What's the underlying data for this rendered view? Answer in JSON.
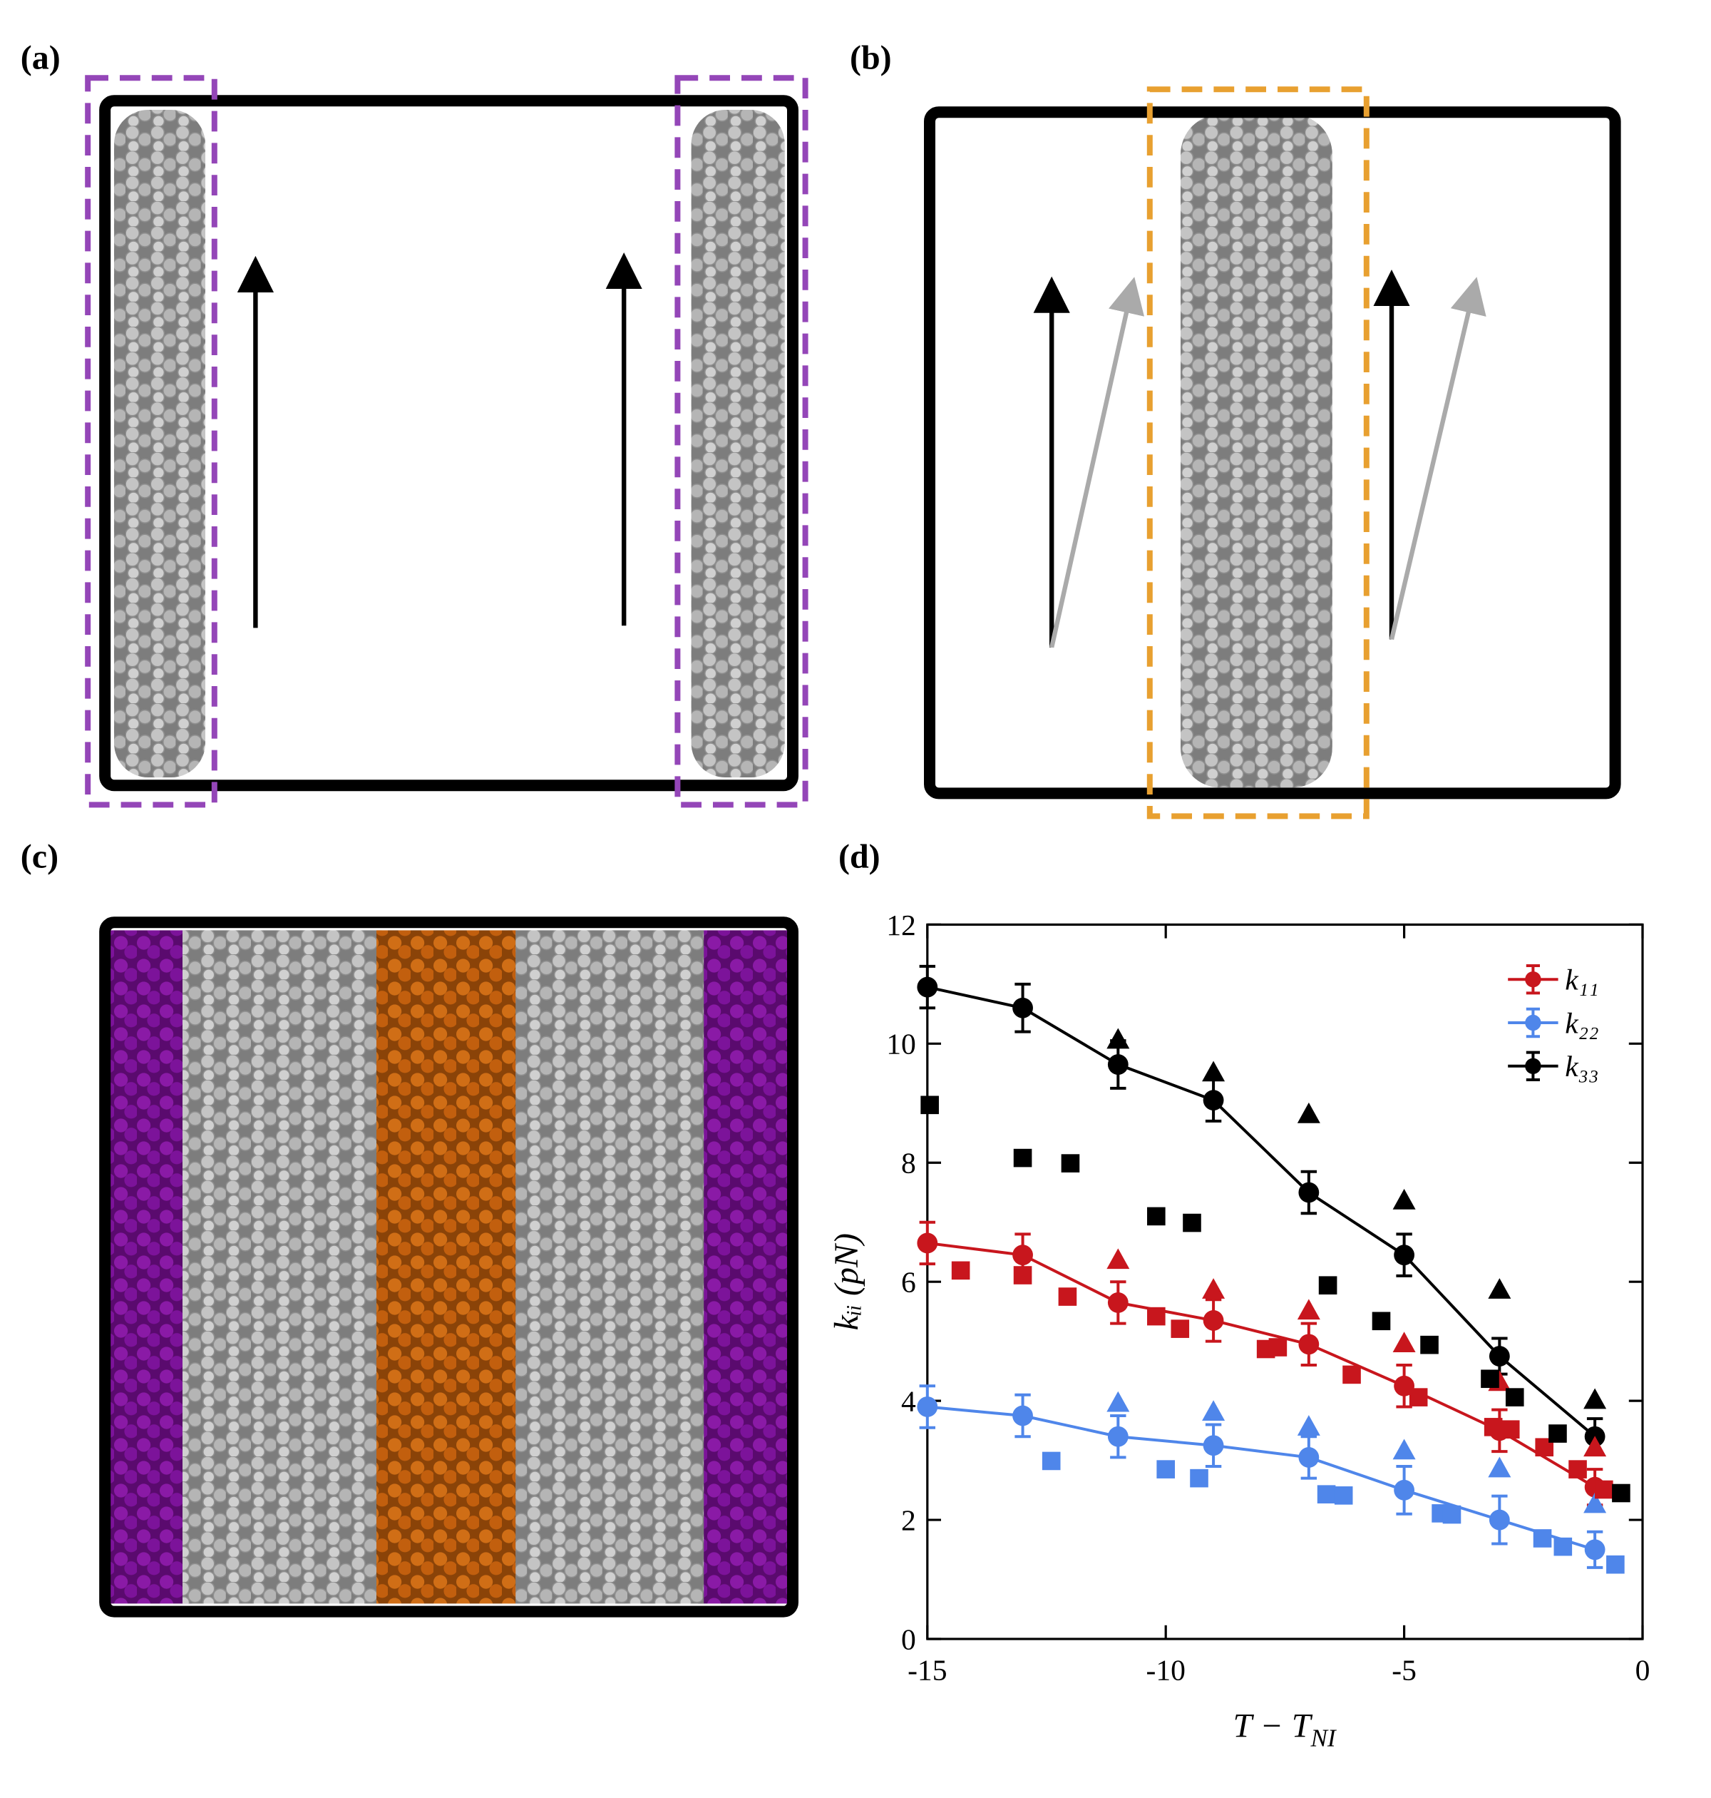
{
  "panel_labels": [
    "(a)",
    "(b)",
    "(c)",
    "(d)"
  ],
  "chart_data": {
    "type": "line",
    "xlabel": "T − T",
    "xlabel_sub": "NI",
    "ylabel": "kᵢᵢ (pN)",
    "xlim": [
      -15,
      0
    ],
    "xticks": [
      -15,
      -10,
      -5,
      0
    ],
    "ylim": [
      0,
      12
    ],
    "yticks": [
      0,
      2,
      4,
      6,
      8,
      10,
      12
    ],
    "legend": "upper right",
    "series": [
      {
        "name": "k₁₁",
        "color": "#c8161d",
        "marker": "circle",
        "line": true,
        "x": [
          -15,
          -13,
          -11,
          -9,
          -7,
          -5,
          -3,
          -1
        ],
        "values": [
          6.65,
          6.45,
          5.65,
          5.35,
          4.95,
          4.25,
          3.5,
          2.55
        ],
        "errors": [
          0.35,
          0.35,
          0.35,
          0.35,
          0.35,
          0.35,
          0.35,
          0.3
        ]
      },
      {
        "name": "k₂₂",
        "color": "#4f86ea",
        "marker": "circle",
        "line": true,
        "x": [
          -15,
          -13,
          -11,
          -9,
          -7,
          -5,
          -3,
          -1
        ],
        "values": [
          3.9,
          3.75,
          3.4,
          3.25,
          3.05,
          2.5,
          2.0,
          1.5
        ],
        "errors": [
          0.35,
          0.35,
          0.35,
          0.35,
          0.35,
          0.4,
          0.4,
          0.3
        ]
      },
      {
        "name": "k₃₃",
        "color": "#000000",
        "marker": "circle",
        "line": true,
        "x": [
          -15,
          -13,
          -11,
          -9,
          -7,
          -5,
          -3,
          -1
        ],
        "values": [
          10.95,
          10.6,
          9.65,
          9.05,
          7.5,
          6.45,
          4.75,
          3.4
        ],
        "errors": [
          0.35,
          0.4,
          0.4,
          0.35,
          0.35,
          0.35,
          0.3,
          0.3
        ]
      },
      {
        "color": "#c8161d",
        "marker": "triangle",
        "x": [
          -11,
          -9,
          -7,
          -5,
          -3,
          -1
        ],
        "values": [
          6.35,
          5.85,
          5.5,
          4.95,
          4.3,
          3.2
        ]
      },
      {
        "color": "#4f86ea",
        "marker": "triangle",
        "x": [
          -11,
          -9,
          -7,
          -5,
          -3,
          -1
        ],
        "values": [
          3.95,
          3.8,
          3.55,
          3.15,
          2.85,
          2.25
        ]
      },
      {
        "color": "#000000",
        "marker": "triangle",
        "x": [
          -11,
          -9,
          -7,
          -5,
          -3,
          -1
        ],
        "values": [
          10.05,
          9.5,
          8.8,
          7.35,
          5.85,
          4.0
        ]
      },
      {
        "color": "#c8161d",
        "marker": "square",
        "x": [
          -14.3,
          -13.0,
          -12.06,
          -10.2,
          -9.7,
          -7.9,
          -7.65,
          -6.1,
          -4.7,
          -3.13,
          -2.77,
          -2.06,
          -1.36,
          -0.81
        ],
        "values": [
          6.19,
          6.11,
          5.75,
          5.42,
          5.21,
          4.87,
          4.9,
          4.44,
          4.06,
          3.56,
          3.52,
          3.22,
          2.85,
          2.51
        ]
      },
      {
        "color": "#4f86ea",
        "marker": "square",
        "x": [
          -12.4,
          -10.0,
          -9.3,
          -6.63,
          -6.27,
          -4.23,
          -4.0,
          -2.1,
          -1.67,
          -0.57
        ],
        "values": [
          2.99,
          2.85,
          2.7,
          2.43,
          2.41,
          2.11,
          2.09,
          1.69,
          1.55,
          1.25
        ]
      },
      {
        "color": "#000000",
        "marker": "square",
        "x": [
          -14.95,
          -13.0,
          -12.0,
          -10.2,
          -9.45,
          -6.6,
          -5.48,
          -4.47,
          -3.2,
          -2.68,
          -1.78,
          -0.45
        ],
        "values": [
          8.97,
          8.08,
          7.99,
          7.1,
          6.99,
          5.94,
          5.34,
          4.94,
          4.37,
          4.06,
          3.45,
          2.45
        ]
      }
    ]
  }
}
